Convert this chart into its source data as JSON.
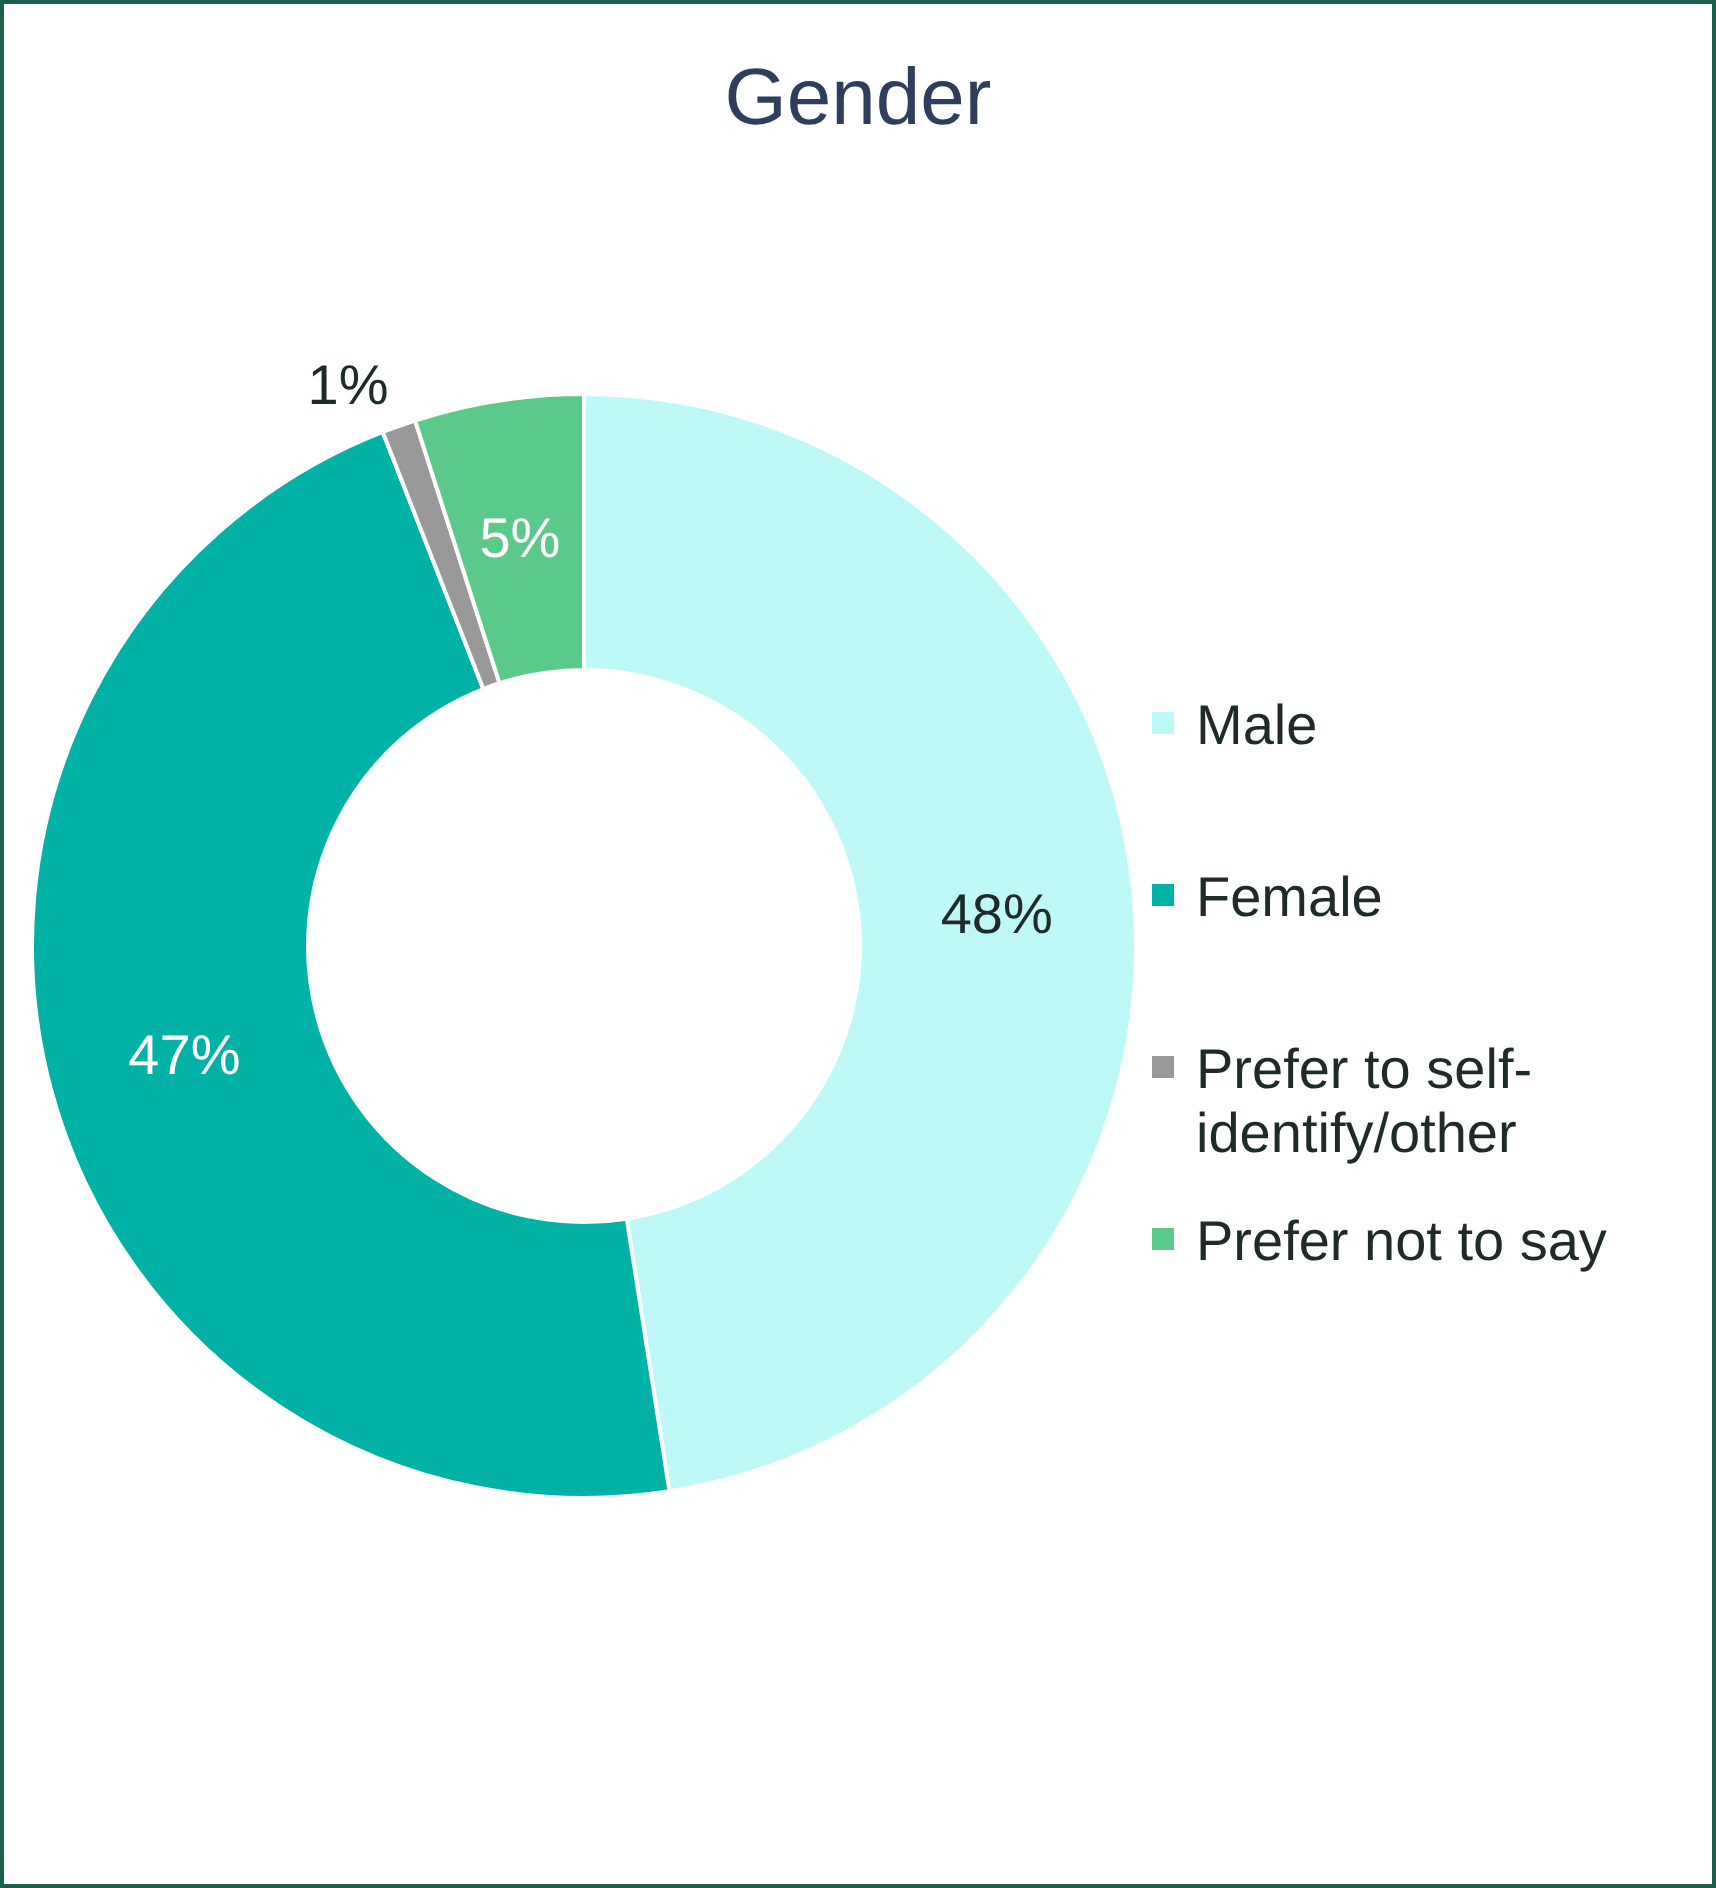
{
  "chart_data": {
    "type": "donut",
    "title": "Gender",
    "categories": [
      "Male",
      "Female",
      "Prefer to self-identify/other",
      "Prefer not to say"
    ],
    "values": [
      48,
      47,
      1,
      5
    ],
    "colors": [
      "#bff9f7",
      "#00b2a5",
      "#999999",
      "#5bc98a"
    ],
    "value_labels": [
      "48%",
      "47%",
      "1%",
      "5%"
    ],
    "legend": "right"
  }
}
